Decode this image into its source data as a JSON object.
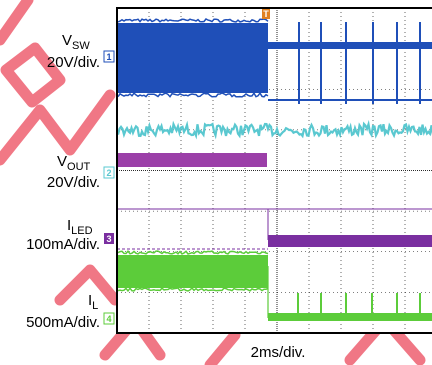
{
  "chart_data": {
    "type": "line",
    "title": "",
    "timebase": "2ms/div.",
    "grid": true,
    "trigger_marker": "T",
    "channels": [
      {
        "id": "1",
        "name": "V",
        "sub": "SW",
        "scale": "20V/div.",
        "color": "#1f4fb8"
      },
      {
        "id": "2",
        "name": "V",
        "sub": "OUT",
        "scale": "20V/div.",
        "color": "#9b3fa8"
      },
      {
        "id": "3",
        "name": "I",
        "sub": "LED",
        "scale": "100mA/div.",
        "color": "#7a2fa0"
      },
      {
        "id": "4",
        "name": "I",
        "sub": "L",
        "scale": "500mA/div.",
        "color": "#5ccc3a"
      }
    ],
    "extra_trace_color": "#5ac8d0",
    "watermark_color": "#ee6070"
  }
}
